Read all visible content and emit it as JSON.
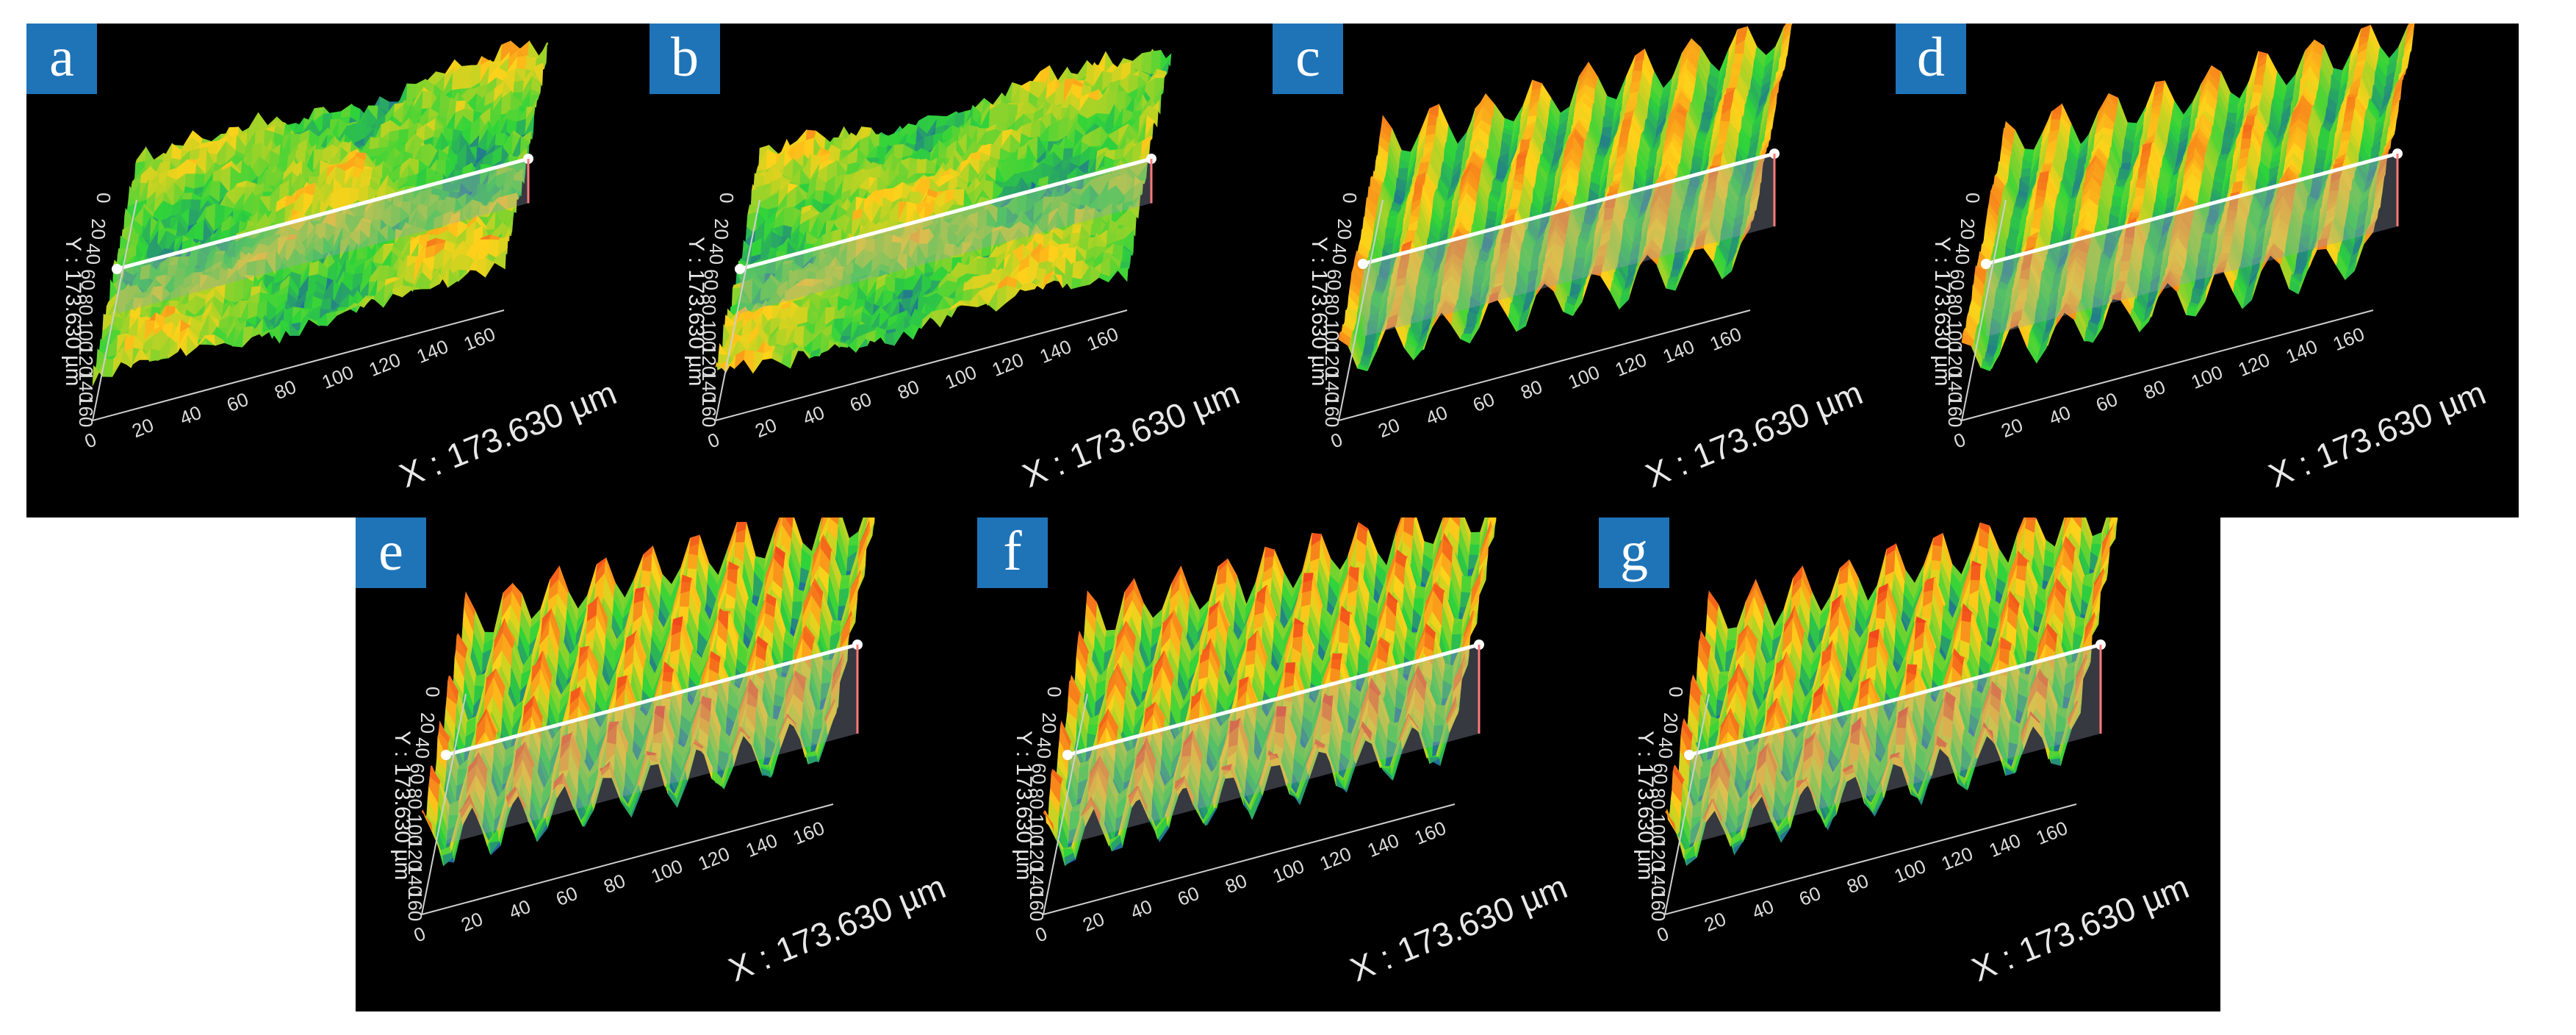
{
  "figure": {
    "panels": [
      {
        "label": "a",
        "x_axis_label": "X : 173.630 µm",
        "y_axis_label": "Y : 173.630 µm",
        "pattern": "random-rough"
      },
      {
        "label": "b",
        "x_axis_label": "X : 173.630 µm",
        "y_axis_label": "Y : 173.630 µm",
        "pattern": "random-rough"
      },
      {
        "label": "c",
        "x_axis_label": "X : 173.630 µm",
        "y_axis_label": "Y : 173.630 µm",
        "pattern": "periodic-bumps"
      },
      {
        "label": "d",
        "x_axis_label": "X : 173.630 µm",
        "y_axis_label": "Y : 173.630 µm",
        "pattern": "periodic-bumps"
      },
      {
        "label": "e",
        "x_axis_label": "X : 173.630 µm",
        "y_axis_label": "Y : 173.630 µm",
        "pattern": "periodic-bumps"
      },
      {
        "label": "f",
        "x_axis_label": "X : 173.630 µm",
        "y_axis_label": "Y : 173.630 µm",
        "pattern": "periodic-bumps"
      },
      {
        "label": "g",
        "x_axis_label": "X : 173.630 µm",
        "y_axis_label": "Y : 173.630 µm",
        "pattern": "periodic-bumps"
      }
    ],
    "x_ticks": [
      "0",
      "20",
      "40",
      "60",
      "80",
      "100",
      "120",
      "140",
      "160"
    ],
    "y_ticks": [
      "0",
      "20",
      "40",
      "60",
      "80",
      "100",
      "120",
      "140",
      "160"
    ],
    "colors": {
      "background": "#000000",
      "badge": "#1f74b8",
      "surface_low": "#1b3fc4",
      "surface_mid": "#2fd43a",
      "surface_high": "#ffd21a",
      "surface_peak": "#ef2b1c",
      "profile_line": "#ffffff",
      "profile_plane": "#9aa4b4",
      "profile_edge": "#ff7a7a"
    }
  }
}
